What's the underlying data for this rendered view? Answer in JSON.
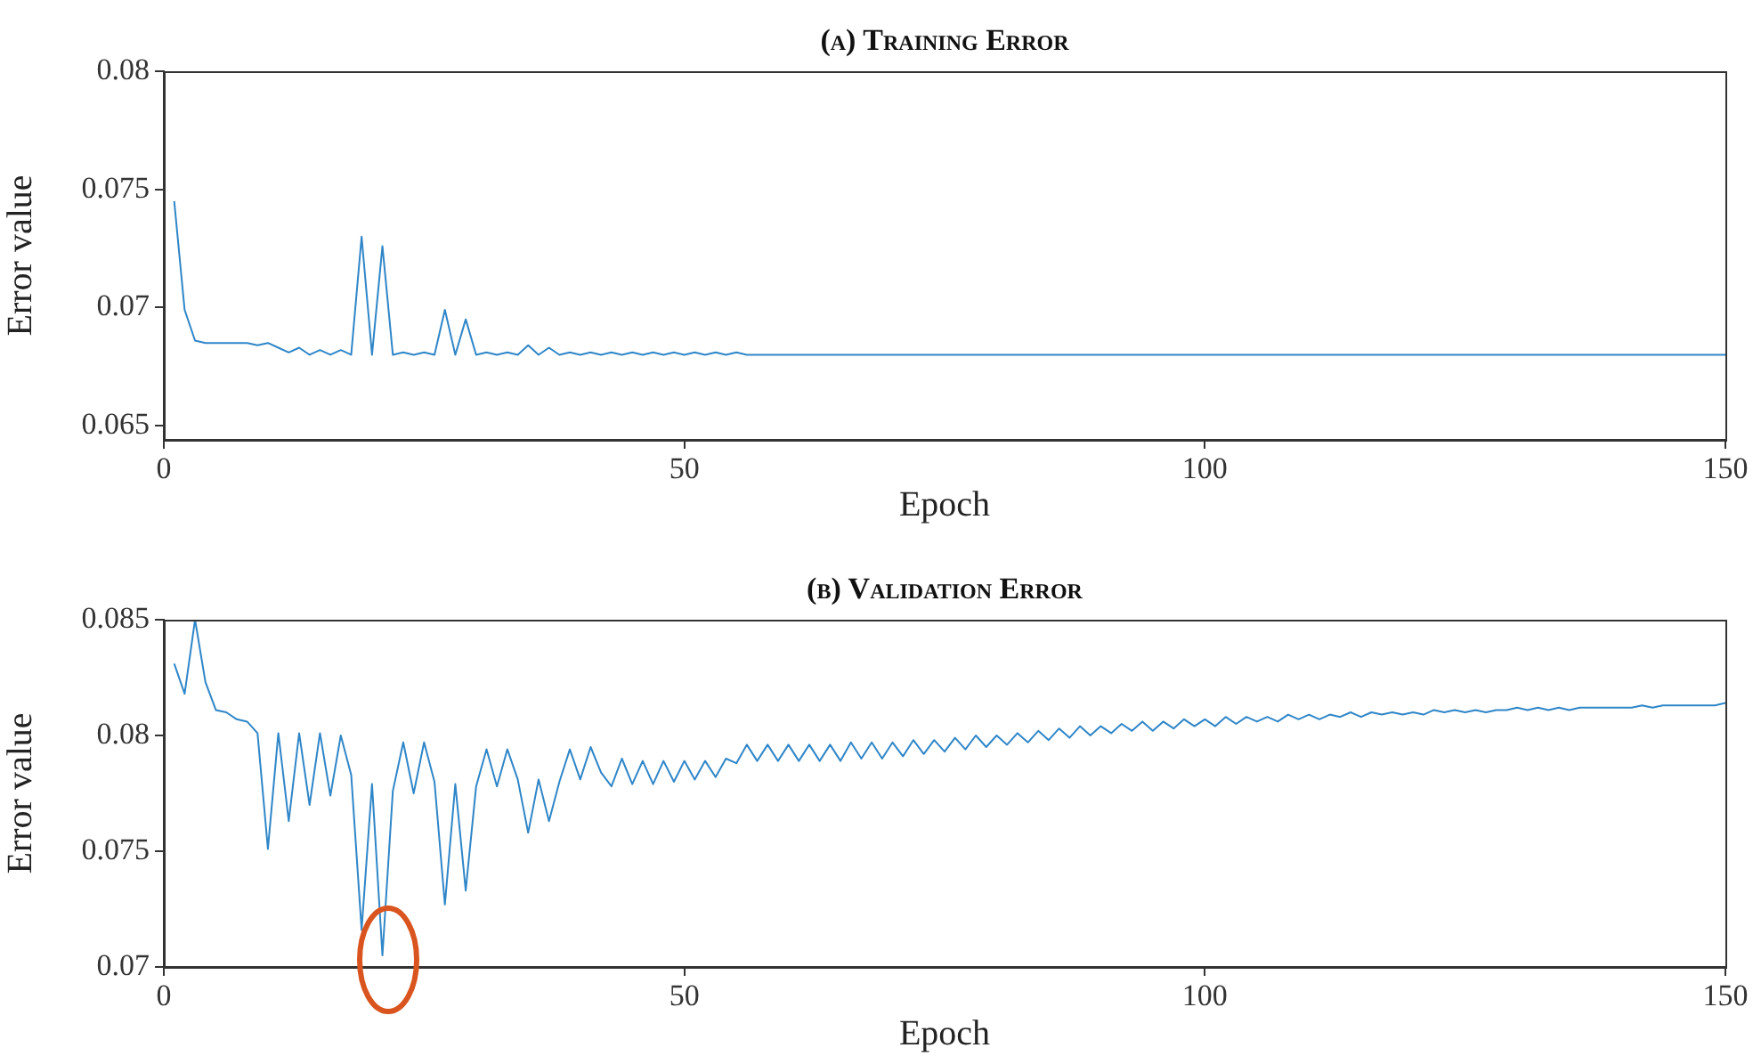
{
  "chart_data": [
    {
      "type": "line",
      "title": "(a) Training Error",
      "xlabel": "Epoch",
      "ylabel": "Error value",
      "x": [
        1,
        2,
        3,
        4,
        5,
        6,
        7,
        8,
        9,
        10,
        11,
        12,
        13,
        14,
        15,
        16,
        17,
        18,
        19,
        20,
        21,
        22,
        23,
        24,
        25,
        26,
        27,
        28,
        29,
        30,
        31,
        32,
        33,
        34,
        35,
        36,
        37,
        38,
        39,
        40,
        41,
        42,
        43,
        44,
        45,
        46,
        47,
        48,
        49,
        50,
        51,
        52,
        53,
        54,
        55,
        56,
        57,
        58,
        59,
        60,
        61,
        62,
        63,
        64,
        65,
        66,
        67,
        68,
        69,
        70,
        71,
        72,
        73,
        74,
        75,
        76,
        77,
        78,
        79,
        80,
        81,
        82,
        83,
        84,
        85,
        86,
        87,
        88,
        89,
        90,
        91,
        92,
        93,
        94,
        95,
        96,
        97,
        98,
        99,
        100,
        101,
        102,
        103,
        104,
        105,
        106,
        107,
        108,
        109,
        110,
        111,
        112,
        113,
        114,
        115,
        116,
        117,
        118,
        119,
        120,
        121,
        122,
        123,
        124,
        125,
        126,
        127,
        128,
        129,
        130,
        131,
        132,
        133,
        134,
        135,
        136,
        137,
        138,
        139,
        140,
        141,
        142,
        143,
        144,
        145,
        146,
        147,
        148,
        149,
        150
      ],
      "series": [
        {
          "color": "#2f86c8",
          "values": [
            0.0745,
            0.0699,
            0.0686,
            0.0685,
            0.0685,
            0.0685,
            0.0685,
            0.0685,
            0.0684,
            0.0685,
            0.0683,
            0.0681,
            0.0683,
            0.068,
            0.0682,
            0.068,
            0.0682,
            0.068,
            0.073,
            0.068,
            0.0726,
            0.068,
            0.0681,
            0.068,
            0.0681,
            0.068,
            0.0699,
            0.068,
            0.0695,
            0.068,
            0.0681,
            0.068,
            0.0681,
            0.068,
            0.0684,
            0.068,
            0.0683,
            0.068,
            0.0681,
            0.068,
            0.0681,
            0.068,
            0.0681,
            0.068,
            0.0681,
            0.068,
            0.0681,
            0.068,
            0.0681,
            0.068,
            0.0681,
            0.068,
            0.0681,
            0.068,
            0.0681,
            0.068,
            0.068,
            0.068,
            0.068,
            0.068,
            0.068,
            0.068,
            0.068,
            0.068,
            0.068,
            0.068,
            0.068,
            0.068,
            0.068,
            0.068,
            0.068,
            0.068,
            0.068,
            0.068,
            0.068,
            0.068,
            0.068,
            0.068,
            0.068,
            0.068,
            0.068,
            0.068,
            0.068,
            0.068,
            0.068,
            0.068,
            0.068,
            0.068,
            0.068,
            0.068,
            0.068,
            0.068,
            0.068,
            0.068,
            0.068,
            0.068,
            0.068,
            0.068,
            0.068,
            0.068,
            0.068,
            0.068,
            0.068,
            0.068,
            0.068,
            0.068,
            0.068,
            0.068,
            0.068,
            0.068,
            0.068,
            0.068,
            0.068,
            0.068,
            0.068,
            0.068,
            0.068,
            0.068,
            0.068,
            0.068,
            0.068,
            0.068,
            0.068,
            0.068,
            0.068,
            0.068,
            0.068,
            0.068,
            0.068,
            0.068,
            0.068,
            0.068,
            0.068,
            0.068,
            0.068,
            0.068,
            0.068,
            0.068,
            0.068,
            0.068,
            0.068,
            0.068,
            0.068,
            0.068,
            0.068,
            0.068,
            0.068,
            0.068,
            0.068,
            0.068
          ]
        }
      ],
      "xlim": [
        0,
        150
      ],
      "xticks": [
        0,
        50,
        100,
        150
      ],
      "ylim": [
        0.0644,
        0.08
      ],
      "yticks": [
        0.065,
        0.07,
        0.075,
        0.08
      ],
      "grid": false
    },
    {
      "type": "line",
      "title": "(b) Validation Error",
      "xlabel": "Epoch",
      "ylabel": "Error value",
      "x": [
        1,
        2,
        3,
        4,
        5,
        6,
        7,
        8,
        9,
        10,
        11,
        12,
        13,
        14,
        15,
        16,
        17,
        18,
        19,
        20,
        21,
        22,
        23,
        24,
        25,
        26,
        27,
        28,
        29,
        30,
        31,
        32,
        33,
        34,
        35,
        36,
        37,
        38,
        39,
        40,
        41,
        42,
        43,
        44,
        45,
        46,
        47,
        48,
        49,
        50,
        51,
        52,
        53,
        54,
        55,
        56,
        57,
        58,
        59,
        60,
        61,
        62,
        63,
        64,
        65,
        66,
        67,
        68,
        69,
        70,
        71,
        72,
        73,
        74,
        75,
        76,
        77,
        78,
        79,
        80,
        81,
        82,
        83,
        84,
        85,
        86,
        87,
        88,
        89,
        90,
        91,
        92,
        93,
        94,
        95,
        96,
        97,
        98,
        99,
        100,
        101,
        102,
        103,
        104,
        105,
        106,
        107,
        108,
        109,
        110,
        111,
        112,
        113,
        114,
        115,
        116,
        117,
        118,
        119,
        120,
        121,
        122,
        123,
        124,
        125,
        126,
        127,
        128,
        129,
        130,
        131,
        132,
        133,
        134,
        135,
        136,
        137,
        138,
        139,
        140,
        141,
        142,
        143,
        144,
        145,
        146,
        147,
        148,
        149,
        150
      ],
      "series": [
        {
          "color": "#2f86c8",
          "values": [
            0.0831,
            0.0818,
            0.085,
            0.0823,
            0.0811,
            0.081,
            0.0807,
            0.0806,
            0.0801,
            0.0751,
            0.0801,
            0.0763,
            0.0801,
            0.077,
            0.0801,
            0.0774,
            0.08,
            0.0783,
            0.0716,
            0.0779,
            0.0705,
            0.0776,
            0.0797,
            0.0775,
            0.0797,
            0.078,
            0.0727,
            0.0779,
            0.0733,
            0.0778,
            0.0794,
            0.0778,
            0.0794,
            0.0781,
            0.0758,
            0.0781,
            0.0763,
            0.078,
            0.0794,
            0.0781,
            0.0795,
            0.0784,
            0.0778,
            0.079,
            0.0779,
            0.0789,
            0.0779,
            0.0789,
            0.078,
            0.0789,
            0.0781,
            0.0789,
            0.0782,
            0.079,
            0.0788,
            0.0796,
            0.0789,
            0.0796,
            0.0789,
            0.0796,
            0.0789,
            0.0796,
            0.0789,
            0.0796,
            0.0789,
            0.0797,
            0.079,
            0.0797,
            0.079,
            0.0797,
            0.0791,
            0.0798,
            0.0792,
            0.0798,
            0.0793,
            0.0799,
            0.0794,
            0.08,
            0.0795,
            0.08,
            0.0796,
            0.0801,
            0.0797,
            0.0802,
            0.0798,
            0.0803,
            0.0799,
            0.0804,
            0.08,
            0.0804,
            0.0801,
            0.0805,
            0.0802,
            0.0806,
            0.0802,
            0.0806,
            0.0803,
            0.0807,
            0.0804,
            0.0807,
            0.0804,
            0.0808,
            0.0805,
            0.0808,
            0.0806,
            0.0808,
            0.0806,
            0.0809,
            0.0807,
            0.0809,
            0.0807,
            0.0809,
            0.0808,
            0.081,
            0.0808,
            0.081,
            0.0809,
            0.081,
            0.0809,
            0.081,
            0.0809,
            0.0811,
            0.081,
            0.0811,
            0.081,
            0.0811,
            0.081,
            0.0811,
            0.0811,
            0.0812,
            0.0811,
            0.0812,
            0.0811,
            0.0812,
            0.0811,
            0.0812,
            0.0812,
            0.0812,
            0.0812,
            0.0812,
            0.0812,
            0.0813,
            0.0812,
            0.0813,
            0.0813,
            0.0813,
            0.0813,
            0.0813,
            0.0813,
            0.0814
          ]
        }
      ],
      "xlim": [
        0,
        150
      ],
      "xticks": [
        0,
        50,
        100,
        150
      ],
      "ylim": [
        0.07,
        0.085
      ],
      "yticks": [
        0.07,
        0.075,
        0.08,
        0.085
      ],
      "grid": false
    }
  ]
}
